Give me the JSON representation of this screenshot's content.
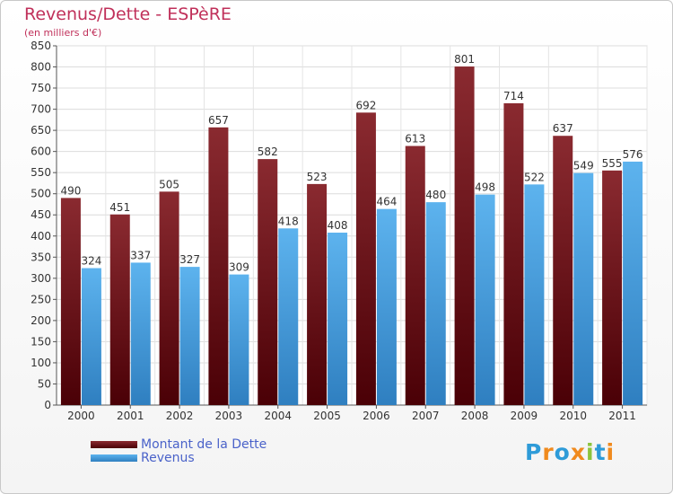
{
  "title": "Revenus/Dette - ESPèRE",
  "subtitle": "(en milliers d'€)",
  "logo_text": "Proxiti",
  "logo_colors": [
    "#2e9bd8",
    "#f08a1e",
    "#2e9bd8",
    "#f08a1e",
    "#8cc43c",
    "#2e9bd8",
    "#f08a1e"
  ],
  "legend": {
    "items": [
      {
        "label": "Montant de la Dette",
        "color": "#6b0f14"
      },
      {
        "label": "Revenus",
        "color": "#4fa8e8"
      }
    ]
  },
  "chart_data": {
    "type": "bar",
    "title": "Revenus/Dette - ESPèRE",
    "subtitle": "(en milliers d'€)",
    "xlabel": "",
    "ylabel": "",
    "categories": [
      "2000",
      "2001",
      "2002",
      "2003",
      "2004",
      "2005",
      "2006",
      "2007",
      "2008",
      "2009",
      "2010",
      "2011"
    ],
    "series": [
      {
        "name": "Montant de la Dette",
        "color": "#6b0f14",
        "values": [
          490,
          451,
          505,
          657,
          582,
          523,
          692,
          613,
          801,
          714,
          637,
          555
        ]
      },
      {
        "name": "Revenus",
        "color": "#4fa8e8",
        "values": [
          324,
          337,
          327,
          309,
          418,
          408,
          464,
          480,
          498,
          522,
          549,
          576
        ]
      }
    ],
    "ylim": [
      0,
      850
    ],
    "yticks": [
      0,
      50,
      100,
      150,
      200,
      250,
      300,
      350,
      400,
      450,
      500,
      550,
      600,
      650,
      700,
      750,
      800,
      850
    ],
    "grid": true,
    "legend_position": "bottom-left"
  }
}
